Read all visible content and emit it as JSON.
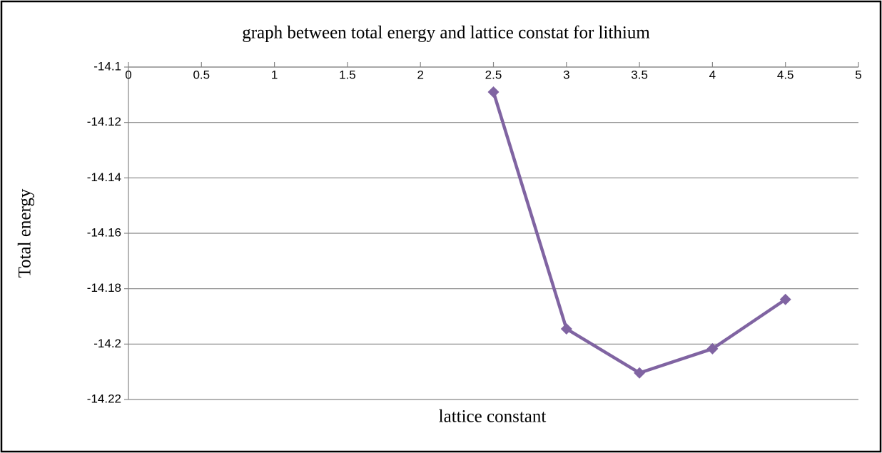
{
  "chart_data": {
    "type": "line",
    "title": "graph between total energy and lattice constat for lithium",
    "x_label": "lattice constant",
    "y_label": "Total energy",
    "x": [
      2.5,
      3,
      3.5,
      4,
      4.5
    ],
    "series": [
      {
        "name": "Total energy",
        "color": "#8064a2",
        "values": [
          -14.109,
          -14.1945,
          -14.2104,
          -14.2017,
          -14.1839
        ]
      }
    ],
    "xlim": [
      0,
      5
    ],
    "xticks": [
      0,
      0.5,
      1,
      1.5,
      2,
      2.5,
      3,
      3.5,
      4,
      4.5,
      5
    ],
    "ylim": [
      -14.22,
      -14.1
    ],
    "yticks": [
      -14.1,
      -14.12,
      -14.14,
      -14.16,
      -14.18,
      -14.2,
      -14.22
    ],
    "grid": true
  }
}
